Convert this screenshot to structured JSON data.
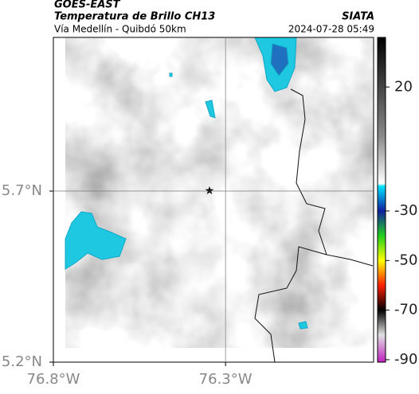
{
  "header": {
    "title": "GOES-EAST",
    "subtitle": "Temperatura de Brillo CH13",
    "source": "SIATA",
    "location": "Vía Medellín - Quibdó 50km",
    "timestamp": "2024-07-28 05:49"
  },
  "map": {
    "xlim": [
      -76.8,
      -75.87
    ],
    "ylim": [
      5.2,
      6.149
    ],
    "xticks": [
      {
        "value": -76.8,
        "label": "76.8°W"
      },
      {
        "value": -76.3,
        "label": "76.3°W"
      }
    ],
    "yticks": [
      {
        "value": 5.7,
        "label": "5.7°N"
      },
      {
        "value": 5.2,
        "label": "5.2°N"
      }
    ]
  },
  "colorbar": {
    "lim": [
      -91,
      40
    ],
    "ticks": [
      20,
      -30,
      -50,
      -70,
      -90
    ],
    "stops": [
      {
        "value": 40,
        "color": "#000000"
      },
      {
        "value": 0,
        "color": "#8a8a8a"
      },
      {
        "value": -19,
        "color": "#ffffff"
      },
      {
        "value": -20,
        "color": "#00e5ff"
      },
      {
        "value": -30,
        "color": "#1020a0"
      },
      {
        "value": -40,
        "color": "#20d020"
      },
      {
        "value": -50,
        "color": "#ffff00"
      },
      {
        "value": -60,
        "color": "#ff2000"
      },
      {
        "value": -70,
        "color": "#000000"
      },
      {
        "value": -80,
        "color": "#e0e0e0"
      },
      {
        "value": -91,
        "color": "#c020c0"
      }
    ]
  }
}
